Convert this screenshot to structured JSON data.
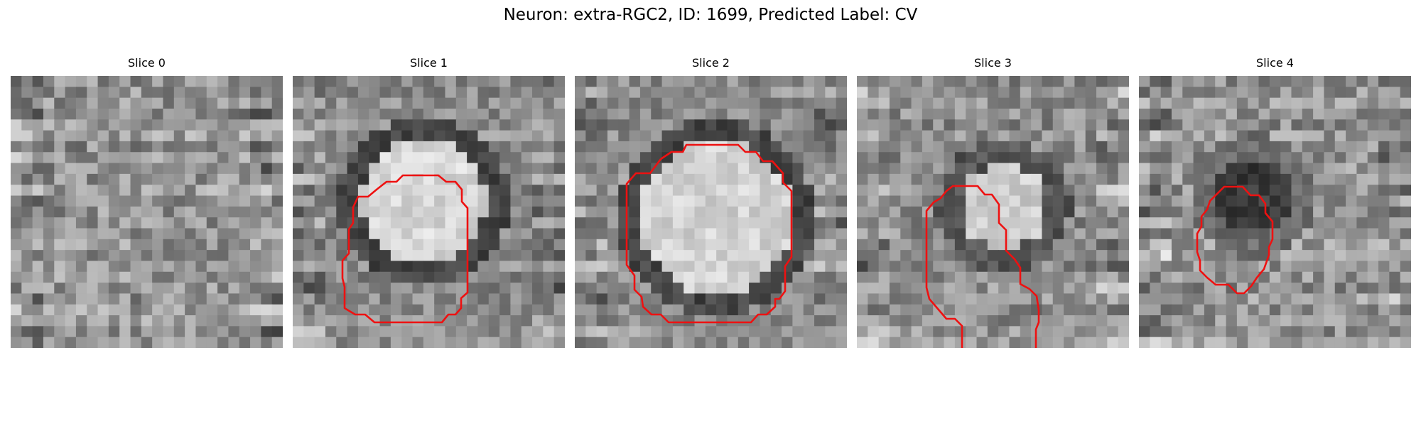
{
  "figure": {
    "title": "Neuron: extra-RGC2, ID: 1699, Predicted Label: CV"
  },
  "panels": [
    {
      "title": "Slice 0",
      "has_contour": false
    },
    {
      "title": "Slice 1",
      "has_contour": true,
      "contour_color": "#ee1111"
    },
    {
      "title": "Slice 2",
      "has_contour": true,
      "contour_color": "#ee1111"
    },
    {
      "title": "Slice 3",
      "has_contour": true,
      "contour_color": "#ee1111"
    },
    {
      "title": "Slice 4",
      "has_contour": true,
      "contour_color": "#ee1111"
    }
  ]
}
